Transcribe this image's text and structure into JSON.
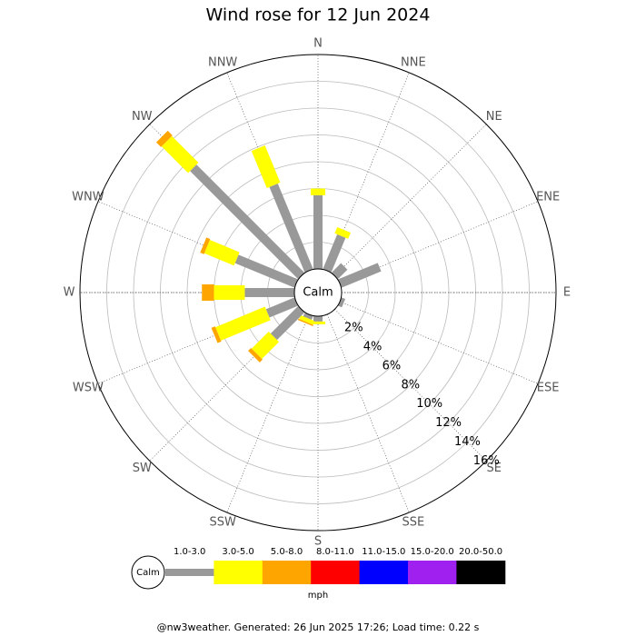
{
  "chart_data": {
    "type": "windrose",
    "title": "Wind rose for 12 Jun 2024",
    "categories": [
      "N",
      "NNE",
      "NE",
      "ENE",
      "E",
      "ESE",
      "SE",
      "SSE",
      "S",
      "SSW",
      "SW",
      "WSW",
      "W",
      "WNW",
      "NW",
      "NNW"
    ],
    "calm_label": "Calm",
    "unit": "mph",
    "ylim": [
      0,
      16
    ],
    "yticks": [
      {
        "value": 2,
        "label": "2%"
      },
      {
        "value": 4,
        "label": "4%"
      },
      {
        "value": 6,
        "label": "6%"
      },
      {
        "value": 8,
        "label": "8%"
      },
      {
        "value": 10,
        "label": "10%"
      },
      {
        "value": 12,
        "label": "12%"
      },
      {
        "value": 14,
        "label": "14%"
      },
      {
        "value": 16,
        "label": "16%"
      }
    ],
    "series": [
      {
        "name": "1.0-3.0",
        "color": "#999999",
        "values": [
          5.5,
          2.8,
          1.0,
          3.2,
          0,
          0.3,
          0,
          0,
          0.4,
          0.3,
          2.9,
          2.3,
          3.7,
          4.8,
          11.4,
          6.9
        ]
      },
      {
        "name": "3.0-5.0",
        "color": "#ffff00",
        "values": [
          0.5,
          0.5,
          0,
          0,
          0,
          0,
          0,
          0,
          0.2,
          0.3,
          1.8,
          4.0,
          2.3,
          2.4,
          2.8,
          3.0
        ]
      },
      {
        "name": "5.0-8.0",
        "color": "#ffa500",
        "values": [
          0,
          0,
          0,
          0,
          0,
          0,
          0,
          0,
          0,
          0.1,
          0.3,
          0.3,
          0.9,
          0.3,
          0.5,
          0
        ]
      },
      {
        "name": "8.0-11.0",
        "color": "#ff0000",
        "values": [
          0,
          0,
          0,
          0,
          0,
          0,
          0,
          0,
          0,
          0,
          0,
          0,
          0,
          0,
          0,
          0
        ]
      },
      {
        "name": "11.0-15.0",
        "color": "#0000ff",
        "values": [
          0,
          0,
          0,
          0,
          0,
          0,
          0,
          0,
          0,
          0,
          0,
          0,
          0,
          0,
          0,
          0
        ]
      },
      {
        "name": "15.0-20.0",
        "color": "#a020f0",
        "values": [
          0,
          0,
          0,
          0,
          0,
          0,
          0,
          0,
          0,
          0,
          0,
          0,
          0,
          0,
          0,
          0
        ]
      },
      {
        "name": "20.0-50.0",
        "color": "#000000",
        "values": [
          0,
          0,
          0,
          0,
          0,
          0,
          0,
          0,
          0,
          0,
          0,
          0,
          0,
          0,
          0,
          0
        ]
      }
    ]
  },
  "footer": "@nw3weather. Generated: 26 Jun 2025 17:26; Load time: 0.22 s"
}
